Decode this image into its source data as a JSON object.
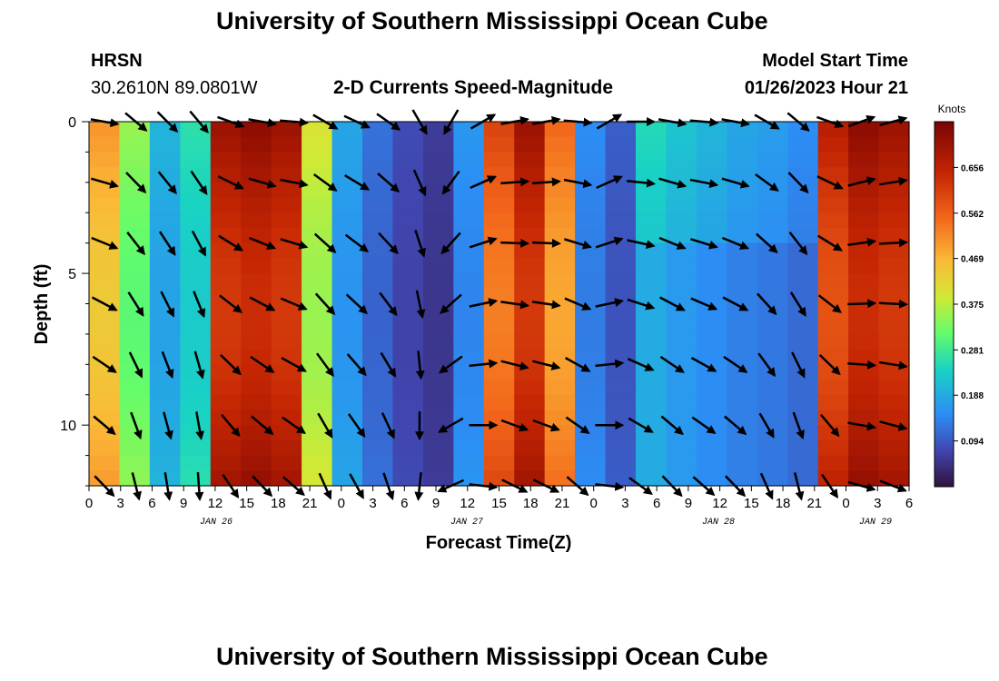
{
  "header": {
    "title": "University of Southern Mississippi Ocean Cube",
    "station": "HRSN",
    "coords": "30.2610N  89.0801W",
    "subtitle": "2-D Currents Speed-Magnitude",
    "model_label": "Model Start Time",
    "model_time": "01/26/2023 Hour 21"
  },
  "footer": {
    "title": "University of Southern Mississippi Ocean Cube"
  },
  "chart_data": {
    "type": "heatmap",
    "title": "2-D Currents Speed-Magnitude",
    "xlabel": "Forecast Time(Z)",
    "ylabel": "Depth (ft)",
    "colorbar_label": "Knots",
    "colorbar_ticks": [
      0.094,
      0.188,
      0.281,
      0.375,
      0.469,
      0.562,
      0.656
    ],
    "colorbar_range": [
      0.0,
      0.75
    ],
    "x_ticks": [
      "0",
      "3",
      "6",
      "9",
      "12",
      "15",
      "18",
      "21",
      "0",
      "3",
      "6",
      "9",
      "12",
      "15",
      "18",
      "21",
      "0",
      "3",
      "6",
      "9",
      "12",
      "15",
      "18",
      "21",
      "0",
      "3",
      "6"
    ],
    "date_labels": [
      "JAN 26",
      "JAN 27",
      "JAN 28",
      "JAN 29"
    ],
    "y_ticks": [
      0,
      5,
      10
    ],
    "ylim": [
      0,
      12
    ],
    "columns_hours": [
      0,
      3,
      6,
      9,
      12,
      15,
      18,
      21,
      24,
      27,
      30,
      33,
      36,
      39,
      42,
      45,
      48,
      51,
      54,
      57,
      60,
      63,
      66,
      69,
      72,
      75,
      78
    ],
    "depth_rows": [
      0,
      2,
      4,
      6,
      8,
      10,
      12
    ],
    "speed_profile": [
      0.5,
      0.35,
      0.2,
      0.26,
      0.7,
      0.72,
      0.7,
      0.4,
      0.18,
      0.12,
      0.08,
      0.06,
      0.16,
      0.6,
      0.7,
      0.55,
      0.15,
      0.1,
      0.25,
      0.22,
      0.2,
      0.18,
      0.17,
      0.15,
      0.66,
      0.72,
      0.7
    ],
    "arrow_angles_deg": [
      10,
      40,
      45,
      50,
      20,
      10,
      5,
      30,
      25,
      35,
      60,
      120,
      330,
      350,
      350,
      5,
      330,
      0,
      10,
      5,
      10,
      30,
      40,
      20,
      340,
      345,
      350
    ]
  }
}
